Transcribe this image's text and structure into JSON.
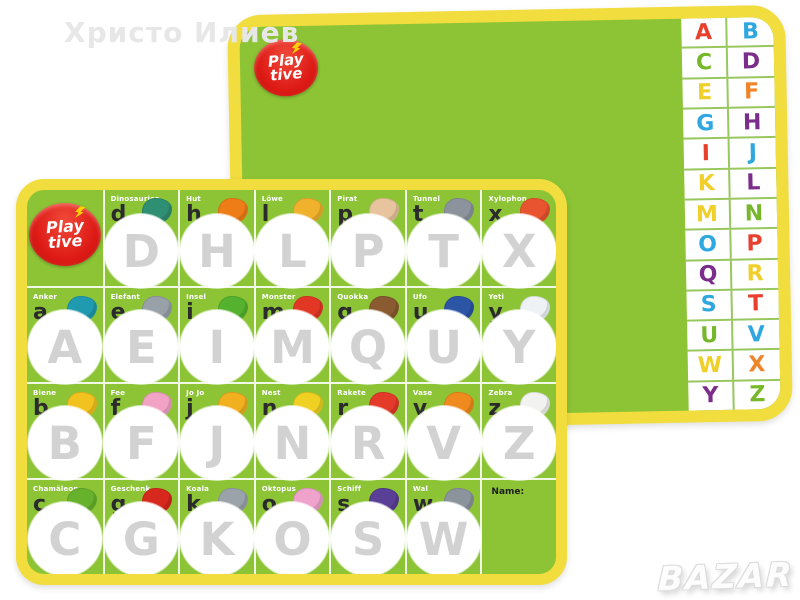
{
  "watermarks": {
    "owner": "Христо Илиев",
    "store": "BAZAR"
  },
  "brand": {
    "line1": "Play",
    "line2": "tive"
  },
  "colors": {
    "board_green": "#8cc436",
    "border_yellow": "#f2dd3f",
    "logo_red": "#dd1a15",
    "circle_letter_gray": "#d2d2d2",
    "lowercase_dark": "#2b2b2b"
  },
  "front_board": {
    "name_label": "Name:",
    "cells": [
      {
        "word": "Dinosaurier",
        "lower": "d",
        "upper": "D",
        "icon": "dinosaur",
        "icon_color": "#2f8f72"
      },
      {
        "word": "Hut",
        "lower": "h",
        "upper": "H",
        "icon": "hat",
        "icon_color": "#ee7d18"
      },
      {
        "word": "Löwe",
        "lower": "l",
        "upper": "L",
        "icon": "lion",
        "icon_color": "#f0b12c"
      },
      {
        "word": "Pirat",
        "lower": "p",
        "upper": "P",
        "icon": "pirate",
        "icon_color": "#e8c49e"
      },
      {
        "word": "Tunnel",
        "lower": "t",
        "upper": "T",
        "icon": "tunnel",
        "icon_color": "#8d939c"
      },
      {
        "word": "Xylophon",
        "lower": "x",
        "upper": "X",
        "icon": "xylophone",
        "icon_color": "#e8542f"
      },
      {
        "word": "Anker",
        "lower": "a",
        "upper": "A",
        "icon": "anchor",
        "icon_color": "#1f9aae"
      },
      {
        "word": "Elefant",
        "lower": "e",
        "upper": "E",
        "icon": "elephant",
        "icon_color": "#98a0a8"
      },
      {
        "word": "Insel",
        "lower": "i",
        "upper": "I",
        "icon": "island",
        "icon_color": "#55b22e"
      },
      {
        "word": "Monster",
        "lower": "m",
        "upper": "M",
        "icon": "monster",
        "icon_color": "#e33726"
      },
      {
        "word": "Quokka",
        "lower": "q",
        "upper": "Q",
        "icon": "quokka",
        "icon_color": "#8a5a30"
      },
      {
        "word": "Ufo",
        "lower": "u",
        "upper": "U",
        "icon": "ufo",
        "icon_color": "#2c55a5"
      },
      {
        "word": "Yeti",
        "lower": "y",
        "upper": "Y",
        "icon": "yeti",
        "icon_color": "#eef2f4"
      },
      {
        "word": "Biene",
        "lower": "b",
        "upper": "B",
        "icon": "bee",
        "icon_color": "#f2c21e"
      },
      {
        "word": "Fee",
        "lower": "f",
        "upper": "F",
        "icon": "fairy",
        "icon_color": "#f2a2c4"
      },
      {
        "word": "Jo Jo",
        "lower": "j",
        "upper": "J",
        "icon": "yoyo",
        "icon_color": "#f0b020"
      },
      {
        "word": "Nest",
        "lower": "n",
        "upper": "N",
        "icon": "nest",
        "icon_color": "#f0d022"
      },
      {
        "word": "Rakete",
        "lower": "r",
        "upper": "R",
        "icon": "rocket",
        "icon_color": "#e33a2a"
      },
      {
        "word": "Vase",
        "lower": "v",
        "upper": "V",
        "icon": "vase",
        "icon_color": "#ef8b1e"
      },
      {
        "word": "Zebra",
        "lower": "z",
        "upper": "Z",
        "icon": "zebra",
        "icon_color": "#f2f2f0"
      },
      {
        "word": "Chamäleon",
        "lower": "c",
        "upper": "C",
        "icon": "chameleon",
        "icon_color": "#67b22c"
      },
      {
        "word": "Geschenk",
        "lower": "g",
        "upper": "G",
        "icon": "gift",
        "icon_color": "#d6281c"
      },
      {
        "word": "Koala",
        "lower": "k",
        "upper": "K",
        "icon": "koala",
        "icon_color": "#9aa2aa"
      },
      {
        "word": "Oktopus",
        "lower": "o",
        "upper": "O",
        "icon": "octopus",
        "icon_color": "#efa2cc"
      },
      {
        "word": "Schiff",
        "lower": "s",
        "upper": "S",
        "icon": "ship",
        "icon_color": "#5a3f96"
      },
      {
        "word": "Wal",
        "lower": "w",
        "upper": "W",
        "icon": "whale",
        "icon_color": "#8b939c"
      }
    ]
  },
  "back_board": {
    "rows": [
      [
        "A",
        "B"
      ],
      [
        "C",
        "D"
      ],
      [
        "E",
        "F"
      ],
      [
        "G",
        "H"
      ],
      [
        "I",
        "J"
      ],
      [
        "K",
        "L"
      ],
      [
        "M",
        "N"
      ],
      [
        "O",
        "P"
      ],
      [
        "Q",
        "R"
      ],
      [
        "S",
        "T"
      ],
      [
        "U",
        "V"
      ],
      [
        "W",
        "X"
      ],
      [
        "Y",
        "Z"
      ]
    ],
    "letter_colors": {
      "A": "#e8402f",
      "B": "#2fa8df",
      "C": "#76b82a",
      "D": "#7b2d8b",
      "E": "#f0cf2a",
      "F": "#f08428",
      "G": "#2fa8df",
      "H": "#7b2d8b",
      "I": "#e8402f",
      "J": "#2fa8df",
      "K": "#f0cf2a",
      "L": "#7b2d8b",
      "M": "#f0cf2a",
      "N": "#76b82a",
      "O": "#2fa8df",
      "P": "#e8402f",
      "Q": "#7b2d8b",
      "R": "#f0cf2a",
      "S": "#2fa8df",
      "T": "#e8402f",
      "U": "#76b82a",
      "V": "#2fa8df",
      "W": "#f0cf2a",
      "X": "#f08428",
      "Y": "#7b2d8b",
      "Z": "#76b82a"
    }
  }
}
